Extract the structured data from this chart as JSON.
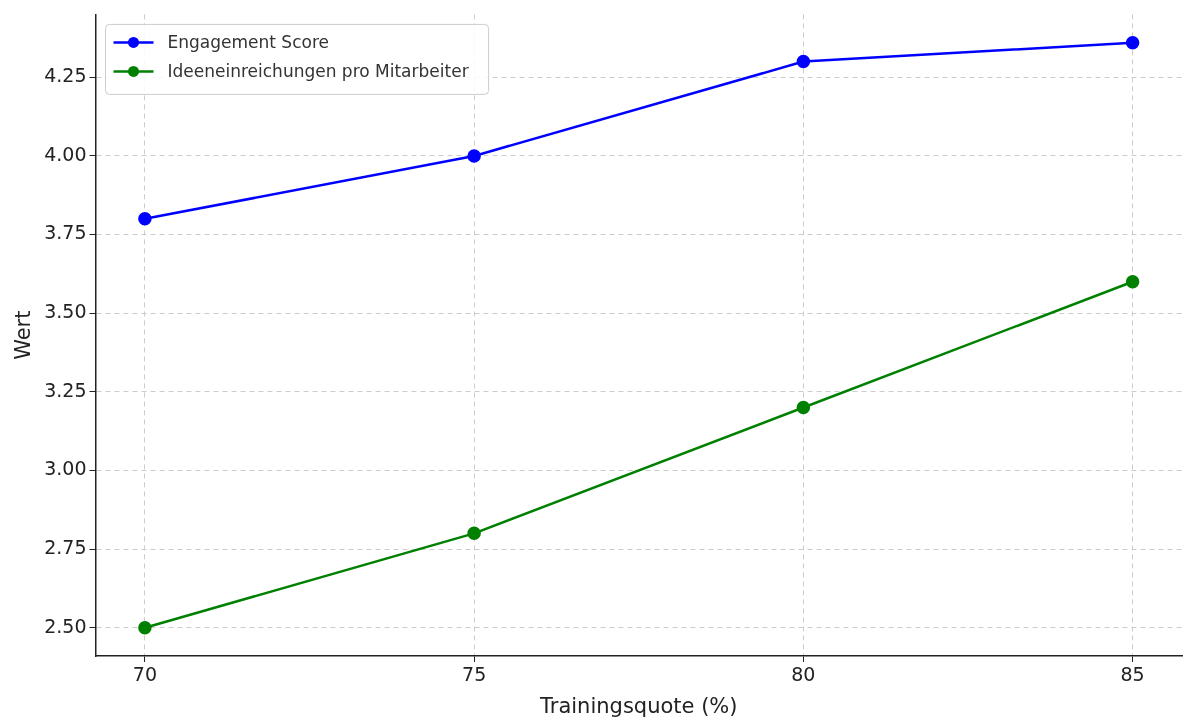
{
  "chart_data": {
    "type": "line",
    "xlabel": "Trainingsquote (%)",
    "ylabel": "Wert",
    "x": [
      70,
      75,
      80,
      85
    ],
    "series": [
      {
        "name": "Engagement Score",
        "color": "#0000ff",
        "values": [
          3.8,
          4.0,
          4.3,
          4.36
        ]
      },
      {
        "name": "Ideeneinreichungen pro Mitarbeiter",
        "color": "#008000",
        "values": [
          2.5,
          2.8,
          3.2,
          3.6
        ]
      }
    ],
    "xlim": [
      69.25,
      85.75
    ],
    "xticks": [
      70,
      75,
      80,
      85
    ],
    "ylim": [
      2.41,
      4.45
    ],
    "yticks": [
      {
        "value": 2.5,
        "label": "2.50"
      },
      {
        "value": 2.75,
        "label": "2.75"
      },
      {
        "value": 3.0,
        "label": "3.00"
      },
      {
        "value": 3.25,
        "label": "3.25"
      },
      {
        "value": 3.5,
        "label": "3.50"
      },
      {
        "value": 3.75,
        "label": "3.75"
      },
      {
        "value": 4.0,
        "label": "4.00"
      },
      {
        "value": 4.25,
        "label": "4.25"
      }
    ],
    "grid": true,
    "legend": "top left",
    "marker": "circle",
    "line_style": "solid"
  }
}
